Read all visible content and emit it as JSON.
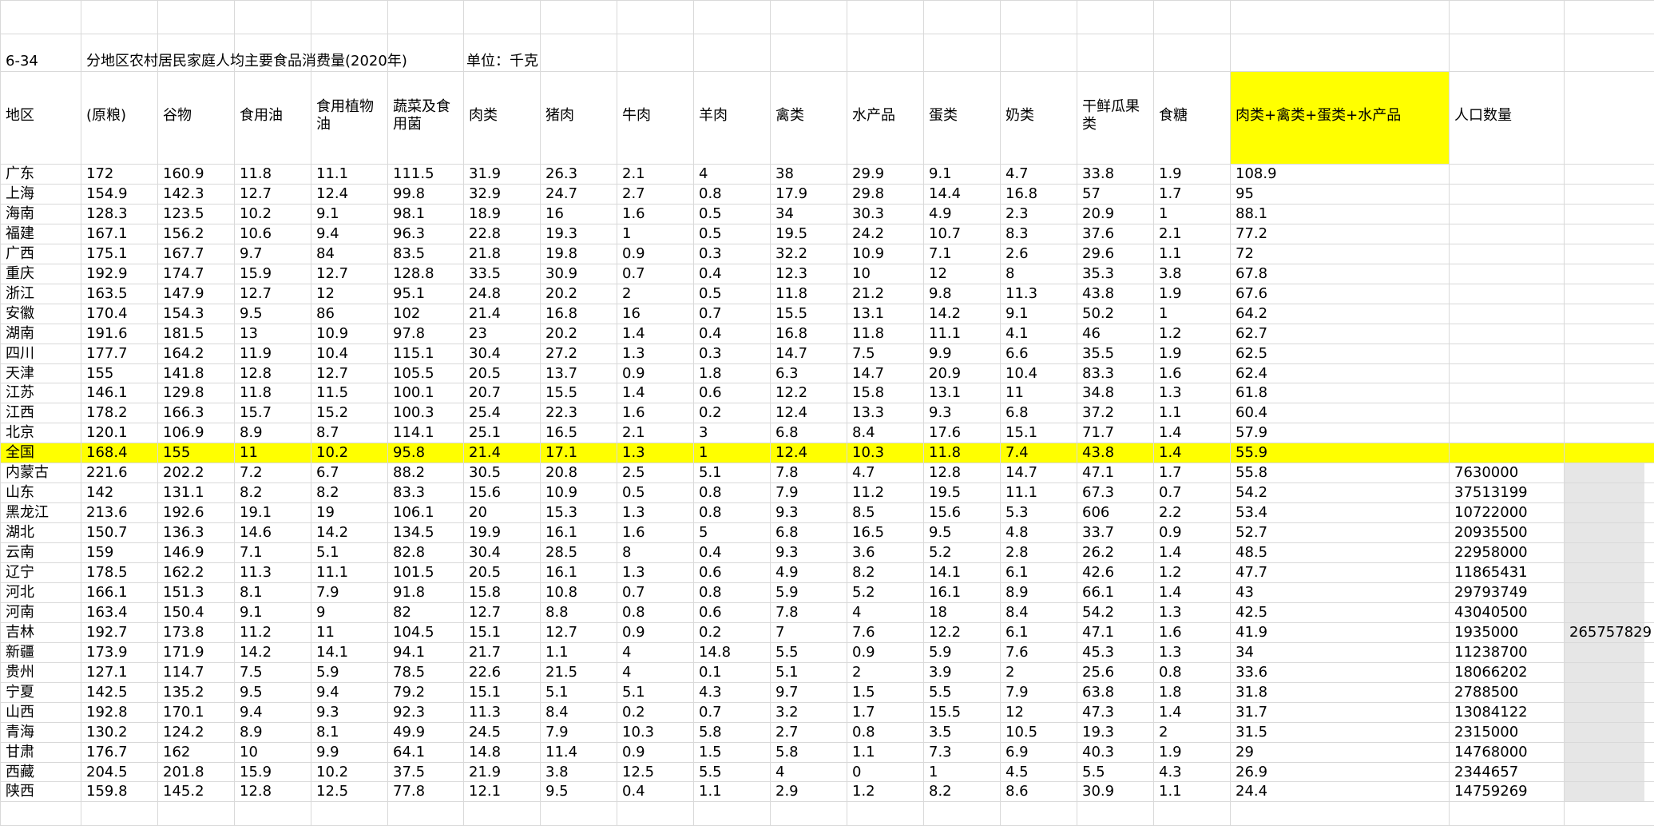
{
  "sheet": {
    "table_code": "6-34",
    "title": "分地区农村居民家庭人均主要食品消费量(2020年)",
    "unit": "单位：千克",
    "headers": [
      "地区",
      "(原粮)",
      "谷物",
      "食用油",
      "食用植物油",
      "蔬菜及食用菌",
      "肉类",
      "猪肉",
      "牛肉",
      "羊肉",
      "禽类",
      "水产品",
      "蛋类",
      "奶类",
      "干鲜瓜果类",
      "食糖",
      "肉类+禽类+蛋类+水产品",
      "人口数量"
    ],
    "rows": [
      [
        "广东",
        "172",
        "160.9",
        "11.8",
        "11.1",
        "111.5",
        "31.9",
        "26.3",
        "2.1",
        "4",
        "38",
        "29.9",
        "9.1",
        "4.7",
        "33.8",
        "1.9",
        "108.9",
        ""
      ],
      [
        "上海",
        "154.9",
        "142.3",
        "12.7",
        "12.4",
        "99.8",
        "32.9",
        "24.7",
        "2.7",
        "0.8",
        "17.9",
        "29.8",
        "14.4",
        "16.8",
        "57",
        "1.7",
        "95",
        ""
      ],
      [
        "海南",
        "128.3",
        "123.5",
        "10.2",
        "9.1",
        "98.1",
        "18.9",
        "16",
        "1.6",
        "0.5",
        "34",
        "30.3",
        "4.9",
        "2.3",
        "20.9",
        "1",
        "88.1",
        ""
      ],
      [
        "福建",
        "167.1",
        "156.2",
        "10.6",
        "9.4",
        "96.3",
        "22.8",
        "19.3",
        "1",
        "0.5",
        "19.5",
        "24.2",
        "10.7",
        "8.3",
        "37.6",
        "2.1",
        "77.2",
        ""
      ],
      [
        "广西",
        "175.1",
        "167.7",
        "9.7",
        "84",
        "83.5",
        "21.8",
        "19.8",
        "0.9",
        "0.3",
        "32.2",
        "10.9",
        "7.1",
        "2.6",
        "29.6",
        "1.1",
        "72",
        ""
      ],
      [
        "重庆",
        "192.9",
        "174.7",
        "15.9",
        "12.7",
        "128.8",
        "33.5",
        "30.9",
        "0.7",
        "0.4",
        "12.3",
        "10",
        "12",
        "8",
        "35.3",
        "3.8",
        "67.8",
        ""
      ],
      [
        "浙江",
        "163.5",
        "147.9",
        "12.7",
        "12",
        "95.1",
        "24.8",
        "20.2",
        "2",
        "0.5",
        "11.8",
        "21.2",
        "9.8",
        "11.3",
        "43.8",
        "1.9",
        "67.6",
        ""
      ],
      [
        "安徽",
        "170.4",
        "154.3",
        "9.5",
        "86",
        "102",
        "21.4",
        "16.8",
        "16",
        "0.7",
        "15.5",
        "13.1",
        "14.2",
        "9.1",
        "50.2",
        "1",
        "64.2",
        ""
      ],
      [
        "湖南",
        "191.6",
        "181.5",
        "13",
        "10.9",
        "97.8",
        "23",
        "20.2",
        "1.4",
        "0.4",
        "16.8",
        "11.8",
        "11.1",
        "4.1",
        "46",
        "1.2",
        "62.7",
        ""
      ],
      [
        "四川",
        "177.7",
        "164.2",
        "11.9",
        "10.4",
        "115.1",
        "30.4",
        "27.2",
        "1.3",
        "0.3",
        "14.7",
        "7.5",
        "9.9",
        "6.6",
        "35.5",
        "1.9",
        "62.5",
        ""
      ],
      [
        "天津",
        "155",
        "141.8",
        "12.8",
        "12.7",
        "105.5",
        "20.5",
        "13.7",
        "0.9",
        "1.8",
        "6.3",
        "14.7",
        "20.9",
        "10.4",
        "83.3",
        "1.6",
        "62.4",
        ""
      ],
      [
        "江苏",
        "146.1",
        "129.8",
        "11.8",
        "11.5",
        "100.1",
        "20.7",
        "15.5",
        "1.4",
        "0.6",
        "12.2",
        "15.8",
        "13.1",
        "11",
        "34.8",
        "1.3",
        "61.8",
        ""
      ],
      [
        "江西",
        "178.2",
        "166.3",
        "15.7",
        "15.2",
        "100.3",
        "25.4",
        "22.3",
        "1.6",
        "0.2",
        "12.4",
        "13.3",
        "9.3",
        "6.8",
        "37.2",
        "1.1",
        "60.4",
        ""
      ],
      [
        "北京",
        "120.1",
        "106.9",
        "8.9",
        "8.7",
        "114.1",
        "25.1",
        "16.5",
        "2.1",
        "3",
        "6.8",
        "8.4",
        "17.6",
        "15.1",
        "71.7",
        "1.4",
        "57.9",
        ""
      ],
      [
        "全国",
        "168.4",
        "155",
        "11",
        "10.2",
        "95.8",
        "21.4",
        "17.1",
        "1.3",
        "1",
        "12.4",
        "10.3",
        "11.8",
        "7.4",
        "43.8",
        "1.4",
        "55.9",
        ""
      ],
      [
        "内蒙古",
        "221.6",
        "202.2",
        "7.2",
        "6.7",
        "88.2",
        "30.5",
        "20.8",
        "2.5",
        "5.1",
        "7.8",
        "4.7",
        "12.8",
        "14.7",
        "47.1",
        "1.7",
        "55.8",
        "7630000"
      ],
      [
        "山东",
        "142",
        "131.1",
        "8.2",
        "8.2",
        "83.3",
        "15.6",
        "10.9",
        "0.5",
        "0.8",
        "7.9",
        "11.2",
        "19.5",
        "11.1",
        "67.3",
        "0.7",
        "54.2",
        "37513199"
      ],
      [
        "黑龙江",
        "213.6",
        "192.6",
        "19.1",
        "19",
        "106.1",
        "20",
        "15.3",
        "1.3",
        "0.8",
        "9.3",
        "8.5",
        "15.6",
        "5.3",
        "606",
        "2.2",
        "53.4",
        "10722000"
      ],
      [
        "湖北",
        "150.7",
        "136.3",
        "14.6",
        "14.2",
        "134.5",
        "19.9",
        "16.1",
        "1.6",
        "5",
        "6.8",
        "16.5",
        "9.5",
        "4.8",
        "33.7",
        "0.9",
        "52.7",
        "20935500"
      ],
      [
        "云南",
        "159",
        "146.9",
        "7.1",
        "5.1",
        "82.8",
        "30.4",
        "28.5",
        "8",
        "0.4",
        "9.3",
        "3.6",
        "5.2",
        "2.8",
        "26.2",
        "1.4",
        "48.5",
        "22958000"
      ],
      [
        "辽宁",
        "178.5",
        "162.2",
        "11.3",
        "11.1",
        "101.5",
        "20.5",
        "16.1",
        "1.3",
        "0.6",
        "4.9",
        "8.2",
        "14.1",
        "6.1",
        "42.6",
        "1.2",
        "47.7",
        "11865431"
      ],
      [
        "河北",
        "166.1",
        "151.3",
        "8.1",
        "7.9",
        "91.8",
        "15.8",
        "10.8",
        "0.7",
        "0.8",
        "5.9",
        "5.2",
        "16.1",
        "8.9",
        "66.1",
        "1.4",
        "43",
        "29793749"
      ],
      [
        "河南",
        "163.4",
        "150.4",
        "9.1",
        "9",
        "82",
        "12.7",
        "8.8",
        "0.8",
        "0.6",
        "7.8",
        "4",
        "18",
        "8.4",
        "54.2",
        "1.3",
        "42.5",
        "43040500"
      ],
      [
        "吉林",
        "192.7",
        "173.8",
        "11.2",
        "11",
        "104.5",
        "15.1",
        "12.7",
        "0.9",
        "0.2",
        "7",
        "7.6",
        "12.2",
        "6.1",
        "47.1",
        "1.6",
        "41.9",
        "1935000"
      ],
      [
        "新疆",
        "173.9",
        "171.9",
        "14.2",
        "14.1",
        "94.1",
        "21.7",
        "1.1",
        "4",
        "14.8",
        "5.5",
        "0.9",
        "5.9",
        "7.6",
        "45.3",
        "1.3",
        "34",
        "11238700"
      ],
      [
        "贵州",
        "127.1",
        "114.7",
        "7.5",
        "5.9",
        "78.5",
        "22.6",
        "21.5",
        "4",
        "0.1",
        "5.1",
        "2",
        "3.9",
        "2",
        "25.6",
        "0.8",
        "33.6",
        "18066202"
      ],
      [
        "宁夏",
        "142.5",
        "135.2",
        "9.5",
        "9.4",
        "79.2",
        "15.1",
        "5.1",
        "5.1",
        "4.3",
        "9.7",
        "1.5",
        "5.5",
        "7.9",
        "63.8",
        "1.8",
        "31.8",
        "2788500"
      ],
      [
        "山西",
        "192.8",
        "170.1",
        "9.4",
        "9.3",
        "92.3",
        "11.3",
        "8.4",
        "0.2",
        "0.7",
        "3.2",
        "1.7",
        "15.5",
        "12",
        "47.3",
        "1.4",
        "31.7",
        "13084122"
      ],
      [
        "青海",
        "130.2",
        "124.2",
        "8.9",
        "8.1",
        "49.9",
        "24.5",
        "7.9",
        "10.3",
        "5.8",
        "2.7",
        "0.8",
        "3.5",
        "10.5",
        "19.3",
        "2",
        "31.5",
        "2315000"
      ],
      [
        "甘肃",
        "176.7",
        "162",
        "10",
        "9.9",
        "64.1",
        "14.8",
        "11.4",
        "0.9",
        "1.5",
        "5.8",
        "1.1",
        "7.3",
        "6.9",
        "40.3",
        "1.9",
        "29",
        "14768000"
      ],
      [
        "西藏",
        "204.5",
        "201.8",
        "15.9",
        "10.2",
        "37.5",
        "21.9",
        "3.8",
        "12.5",
        "5.5",
        "4",
        "0",
        "1",
        "4.5",
        "5.5",
        "4.3",
        "26.9",
        "2344657"
      ],
      [
        "陕西",
        "159.8",
        "145.2",
        "12.8",
        "12.5",
        "77.8",
        "12.1",
        "9.5",
        "0.4",
        "1.1",
        "2.9",
        "1.2",
        "8.2",
        "8.6",
        "30.9",
        "1.1",
        "24.4",
        "14759269"
      ]
    ],
    "population_total": "265757829",
    "highlight_row": 14,
    "highlight_color": "#ffff00",
    "grey_fill_color": "#e6e6e6"
  }
}
